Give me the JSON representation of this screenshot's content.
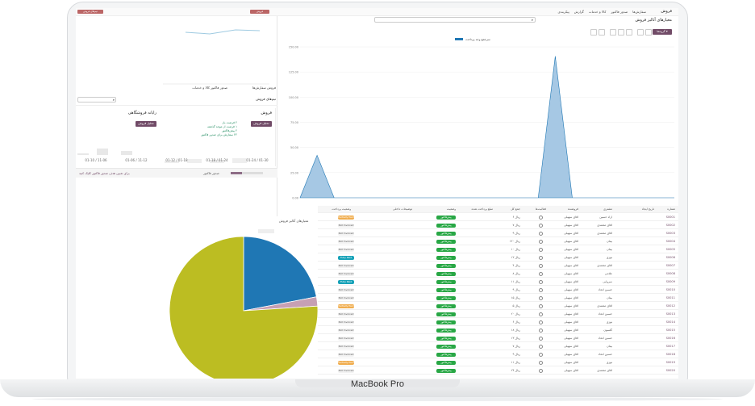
{
  "laptop": {
    "label": "MacBook Pro"
  },
  "topbar": {
    "app_name": "فروش",
    "menus": [
      "سفارش‌ها",
      "صدور فاکتور",
      "کالا و خدمات",
      "گزارش",
      "پیکربندی"
    ]
  },
  "page": {
    "title": "معیارهای آنالیز فروش",
    "new_button": "گروه‌ها ▾"
  },
  "legend": {
    "series_name": "سرجمع وجه پرداخت"
  },
  "chart": {
    "yticks": [
      "150.00",
      "125.00",
      "100.00",
      "75.00",
      "50.00",
      "25.00",
      "0.00"
    ]
  },
  "chart_data": {
    "type": "area",
    "series": [
      {
        "name": "سرجمع وجه پرداخت",
        "values": [
          0,
          45,
          0,
          0,
          0,
          0,
          0,
          0,
          0,
          0,
          0,
          0,
          0,
          0,
          0,
          150,
          0,
          0,
          0,
          0,
          0,
          0,
          0
        ]
      }
    ],
    "ylim": [
      0,
      160
    ]
  },
  "table": {
    "headers": [
      "شماره",
      "تاریخ ایجاد",
      "مشتری",
      "فروشنده",
      "فعالیت‌ها",
      "جمع کل",
      "مبلغ پرداخت شده",
      "وضعیت",
      "توضیحات داخلی",
      "وضعیت پرداخت"
    ],
    "rows": [
      {
        "id": "S0001",
        "customer": "آزاد حسین",
        "seller": "آقای سهیلی",
        "total": "۶ ریال",
        "status": "پیش‌فاکتور",
        "pay": "Partially Paid"
      },
      {
        "id": "S0002",
        "customer": "آقای محمدی",
        "seller": "آقای سهیلی",
        "total": "۷ ریال",
        "status": "پیش‌فاکتور",
        "pay": "Not Invoiced"
      },
      {
        "id": "S0003",
        "customer": "آقای محمدی",
        "seller": "آقای سهیلی",
        "total": "۹ ریال",
        "status": "پیش‌فاکتور",
        "pay": "Not Invoiced"
      },
      {
        "id": "S0004",
        "customer": "بیتان",
        "seller": "آقای سهیلی",
        "total": "۱۲۰ ریال",
        "status": "پیش‌فاکتور",
        "pay": "Not Invoiced"
      },
      {
        "id": "S0005",
        "customer": "بیتان",
        "seller": "آقای سهیلی",
        "total": "۱۰ ریال",
        "status": "پیش‌فاکتور",
        "pay": "Not Invoiced"
      },
      {
        "id": "S0006",
        "customer": "نوزی",
        "seller": "آقای سهیلی",
        "total": "۱۲ ریال",
        "status": "پیش‌فاکتور",
        "pay": "Fully Paid"
      },
      {
        "id": "S0007",
        "customer": "آقای محمدی",
        "seller": "آقای سهیلی",
        "total": "۴ ریال",
        "status": "پیش‌فاکتور",
        "pay": "Not Invoiced"
      },
      {
        "id": "S0008",
        "customer": "علامی",
        "seller": "آقای سهیلی",
        "total": "۸ ریال",
        "status": "پیش‌فاکتور",
        "pay": "Not Invoiced"
      },
      {
        "id": "S0009",
        "customer": "سروایی",
        "seller": "آقای سهیلی",
        "total": "۱۱ ریال",
        "status": "پیش‌فاکتور",
        "pay": "Fully Paid"
      },
      {
        "id": "S0010",
        "customer": "حسین اتحاد",
        "seller": "آقای سهیلی",
        "total": "۹ ریال",
        "status": "پیش‌فاکتور",
        "pay": "Not Invoiced"
      },
      {
        "id": "S0011",
        "customer": "بیتان",
        "seller": "آقای سهیلی",
        "total": "۱۵ ریال",
        "status": "پیش‌فاکتور",
        "pay": "Not Invoiced"
      },
      {
        "id": "S0012",
        "customer": "آقای محمدی",
        "seller": "آقای سهیلی",
        "total": "۵ ریال",
        "status": "پیش‌فاکتور",
        "pay": "Partially Paid"
      },
      {
        "id": "S0013",
        "customer": "حسین اتحاد",
        "seller": "آقای سهیلی",
        "total": "۲۰ ریال",
        "status": "پیش‌فاکتور",
        "pay": "Not Invoiced"
      },
      {
        "id": "S0014",
        "customer": "نوزی",
        "seller": "آقای سهیلی",
        "total": "۶ ریال",
        "status": "پیش‌فاکتور",
        "pay": "Not Invoiced"
      },
      {
        "id": "S0015",
        "customer": "گلسون",
        "seller": "آقای سهیلی",
        "total": "۱۸ ریال",
        "status": "پیش‌فاکتور",
        "pay": "Not Invoiced"
      },
      {
        "id": "S0016",
        "customer": "حسین اتحاد",
        "seller": "آقای سهیلی",
        "total": "۱۳ ریال",
        "status": "پیش‌فاکتور",
        "pay": "Not Invoiced"
      },
      {
        "id": "S0017",
        "customer": "بیتان",
        "seller": "آقای سهیلی",
        "total": "۷ ریال",
        "status": "پیش‌فاکتور",
        "pay": "Not Invoiced"
      },
      {
        "id": "S0018",
        "customer": "حسین اتحاد",
        "seller": "آقای سهیلی",
        "total": "۹ ریال",
        "status": "پیش‌فاکتور",
        "pay": "Not Invoiced"
      },
      {
        "id": "S0019",
        "customer": "نوزی",
        "seller": "آقای سهیلی",
        "total": "۱۱ ریال",
        "status": "پیش‌فاکتور",
        "pay": "Partially Paid"
      },
      {
        "id": "S0020",
        "customer": "آقای محمدی",
        "seller": "آقای سهیلی",
        "total": "۲۴ ریال",
        "status": "پیش‌فاکتور",
        "pay": "Not Invoiced"
      }
    ]
  },
  "left_panel": {
    "menus": [
      "فروش",
      "سفارش‌ها",
      "صدور فاکتور",
      "کالا و خدمات",
      "گزارش",
      "پیکربندی"
    ],
    "breadcrumb": "تیم‌های فروش",
    "card1_title": "فروش",
    "card1_button": "تحلیل فروش",
    "card1_lines": [
      "۲ فرصت باز",
      "۱ فرصت از موعد گذشته",
      "۲ پیش‌فاکتور",
      "۲۲ سفارش برای صدور فاکتور"
    ],
    "card2_title": "رایانه فروشگاهی",
    "card2_button": "تحلیل فروش",
    "card2_dates": [
      "01-10 / 11-06",
      "01-06 / 11-12",
      "01-12 / 01-18",
      "01-18 / 01-24",
      "01-24 / 01-30"
    ],
    "footer_link": "برای تعیین هدف صدور فاکتور کلیک کنید",
    "progress_label": "صدور فاکتور",
    "progress": 0.35
  },
  "pie": {
    "legend": "معیارهای آنالیز فروش",
    "colors": [
      "#1f77b4",
      "#c6a0b4",
      "#bcbd22"
    ],
    "chart_data": {
      "type": "pie",
      "values": [
        22,
        2,
        76
      ]
    }
  }
}
